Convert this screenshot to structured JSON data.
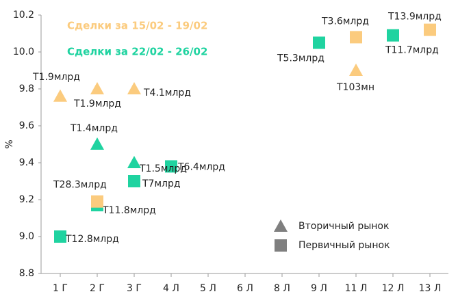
{
  "chart_data": {
    "type": "scatter",
    "y_label": "%",
    "categories": [
      "1 Г",
      "2 Г",
      "3 Г",
      "4 Л",
      "5 Л",
      "6 Л",
      "8 Л",
      "9 Л",
      "11 Л",
      "12 Л",
      "13 Л"
    ],
    "ylim": [
      8.8,
      10.2
    ],
    "yticks": [
      8.8,
      {
        "value": 9,
        "label": "9.0"
      },
      9.2,
      9.4,
      9.6,
      9.8,
      {
        "value": 10,
        "label": "10.0"
      },
      10.2
    ],
    "groups": [
      {
        "name": "Сделки за 15/02 - 19/02",
        "color": "#fbcb7e"
      },
      {
        "name": "Сделки за 22/02 - 26/02",
        "color": "#1fd3a0"
      }
    ],
    "markers": [
      {
        "name": "Вторичный рынок",
        "shape": "triangle",
        "color": "#7f7f7f"
      },
      {
        "name": "Первичный рынок",
        "shape": "square",
        "color": "#7f7f7f"
      }
    ],
    "series": [
      {
        "group": 1,
        "marker": 1,
        "x": [
          "1 Г",
          "2 Г",
          "3 Г",
          "4 Л",
          "9 Л",
          "12 Л"
        ],
        "values": [
          9.0,
          9.17,
          9.3,
          9.38,
          10.05,
          10.09
        ],
        "labels": [
          "Т12.8млрд",
          "Т11.8млрд",
          "Т7млрд",
          "Т6.4млрд",
          "Т5.3млрд",
          "Т11.7млрд"
        ]
      },
      {
        "group": 1,
        "marker": 0,
        "x": [
          "2 Г",
          "3 Г"
        ],
        "values": [
          9.5,
          9.4
        ],
        "labels": [
          "Т1.4млрд",
          "Т1.5млрд"
        ]
      },
      {
        "group": 0,
        "marker": 1,
        "x": [
          "2 Г",
          "11 Л",
          "13 Л"
        ],
        "values": [
          9.19,
          10.08,
          10.12
        ],
        "labels": [
          "Т28.3млрд",
          "Т3.6млрд",
          "Т13.9млрд"
        ]
      },
      {
        "group": 0,
        "marker": 0,
        "x": [
          "1 Г",
          "2 Г",
          "3 Г",
          "11 Л"
        ],
        "values": [
          9.76,
          9.8,
          9.8,
          9.9
        ],
        "labels": [
          "Т1.9млрд",
          "Т1.9млрд",
          "Т4.1млрд",
          "Т103мн"
        ]
      }
    ]
  }
}
